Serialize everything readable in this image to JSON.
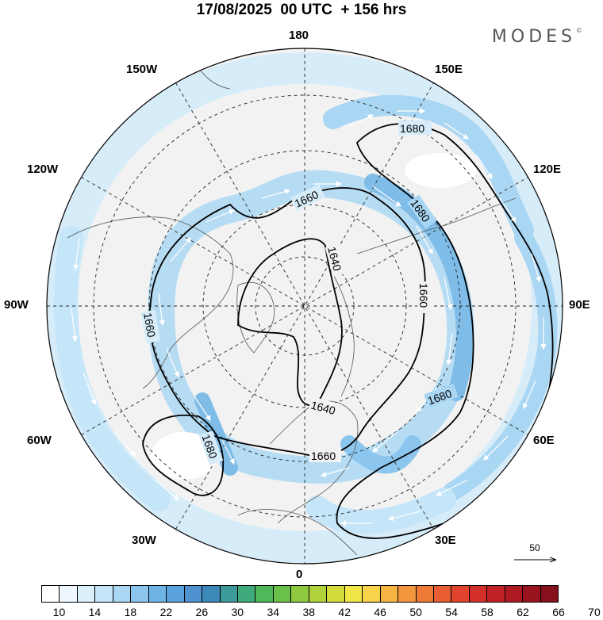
{
  "header": {
    "title": "17/08/2025  00 UTC  + 156 hrs",
    "brand": "MODES",
    "brand_mark": "©"
  },
  "map": {
    "projection": "north-polar-stereographic",
    "longitude_labels": {
      "top": "180",
      "top_left": "150W",
      "top_right": "150E",
      "upper_left": "120W",
      "upper_right": "120E",
      "left": "90W",
      "right": "90E",
      "lower_left": "60W",
      "lower_right": "60E",
      "bottom_left": "30W",
      "bottom_right": "30E",
      "bottom": "0"
    },
    "contour_labels": [
      "1680",
      "1660",
      "1680",
      "1640",
      "1660",
      "1660",
      "1680",
      "1640",
      "1680",
      "1660"
    ],
    "colors": {
      "land_fill": "#f2f2f2",
      "ocean_fill": "#ffffff",
      "contour_line": "#000000",
      "vector_arrow": "#ffffff"
    }
  },
  "reference_vector": {
    "label": "50"
  },
  "colorbar": {
    "ticks": [
      "10",
      "14",
      "18",
      "22",
      "26",
      "30",
      "34",
      "38",
      "42",
      "46",
      "50",
      "54",
      "58",
      "62",
      "66",
      "70"
    ],
    "colors": [
      "#ffffff",
      "#eef7fd",
      "#dcf0fb",
      "#c5e5f8",
      "#a9d6f3",
      "#8cc6ee",
      "#6fb4e6",
      "#5aa3dc",
      "#4f92cf",
      "#3c88b8",
      "#3d9a9a",
      "#3faa7b",
      "#4eb85a",
      "#6ac149",
      "#8ec93f",
      "#b0d23b",
      "#d3dc3c",
      "#f1e548",
      "#f7d24a",
      "#f6b443",
      "#f3973e",
      "#ee7a38",
      "#e85d33",
      "#e0432e",
      "#d33029",
      "#c12225",
      "#ae1a22",
      "#9a141f",
      "#86101c"
    ]
  }
}
